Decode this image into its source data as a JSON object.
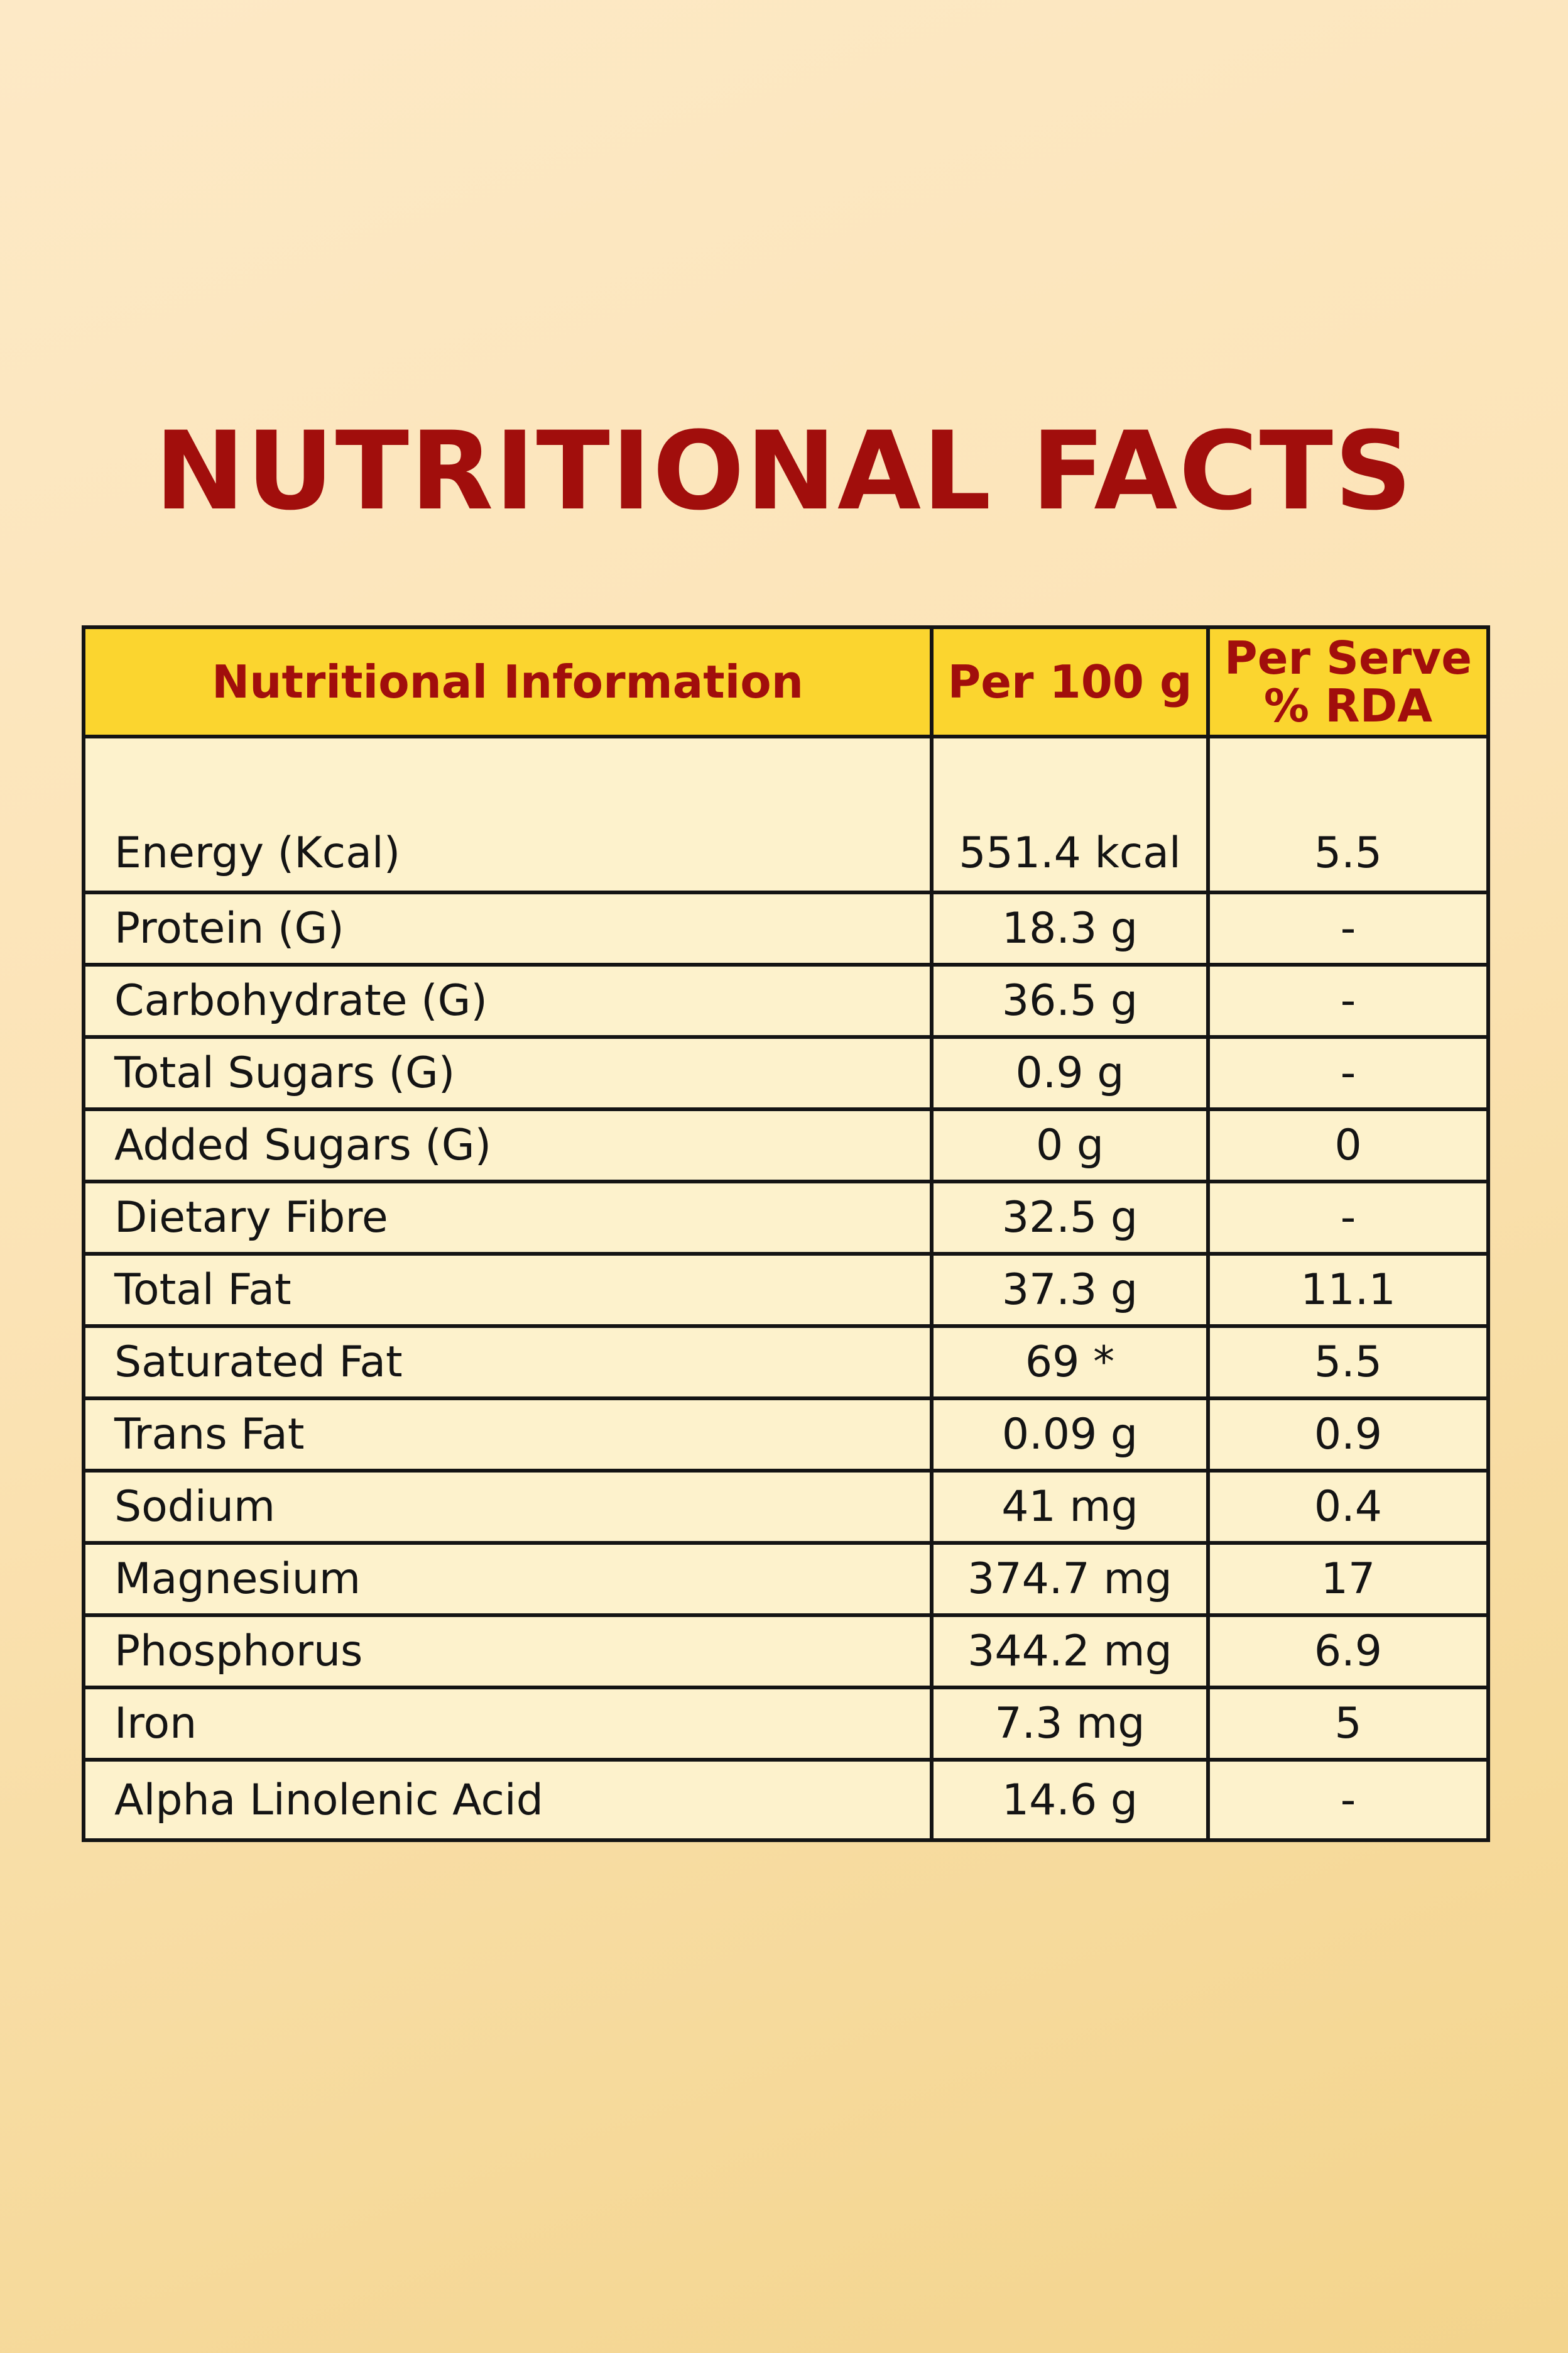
{
  "title": "NUTRITIONAL FACTS",
  "colors": {
    "title": "#a10e0c",
    "header_bg": "#fbd52f",
    "cell_bg": "#fdf2cc",
    "border": "#141414"
  },
  "table": {
    "headers": {
      "name": "Nutritional Information",
      "per100": "Per 100 g",
      "rda_line1": "Per Serve",
      "rda_line2": "% RDA"
    },
    "rows": [
      {
        "name": "Energy (Kcal)",
        "per100": "551.4 kcal",
        "rda": "5.5"
      },
      {
        "name": "Protein (G)",
        "per100": "18.3 g",
        "rda": "-"
      },
      {
        "name": "Carbohydrate (G)",
        "per100": "36.5 g",
        "rda": "-"
      },
      {
        "name": "Total Sugars (G)",
        "per100": "0.9 g",
        "rda": "-"
      },
      {
        "name": "Added Sugars (G)",
        "per100": "0 g",
        "rda": "0"
      },
      {
        "name": "Dietary Fibre",
        "per100": "32.5 g",
        "rda": "-"
      },
      {
        "name": "Total Fat",
        "per100": "37.3 g",
        "rda": "11.1"
      },
      {
        "name": "Saturated Fat",
        "per100": "69 *",
        "rda": "5.5"
      },
      {
        "name": "Trans Fat",
        "per100": "0.09 g",
        "rda": "0.9"
      },
      {
        "name": "Sodium",
        "per100": "41 mg",
        "rda": "0.4"
      },
      {
        "name": "Magnesium",
        "per100": "374.7 mg",
        "rda": "17"
      },
      {
        "name": "Phosphorus",
        "per100": "344.2 mg",
        "rda": "6.9"
      },
      {
        "name": "Iron",
        "per100": "7.3 mg",
        "rda": "5"
      },
      {
        "name": "Alpha Linolenic Acid",
        "per100": "14.6 g",
        "rda": "-"
      }
    ]
  }
}
